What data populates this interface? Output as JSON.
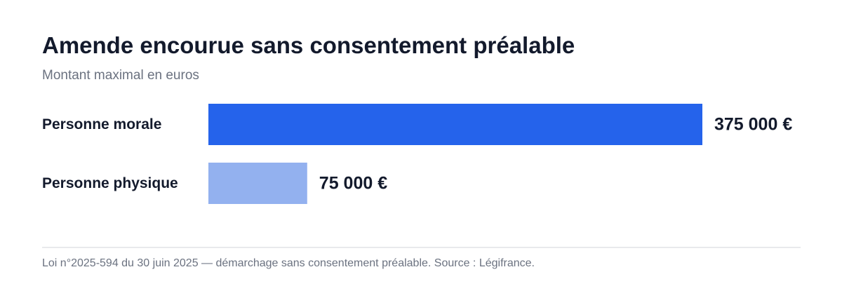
{
  "title": "Amende encourue sans consentement préalable",
  "subtitle": "Montant maximal en euros",
  "footnote": "Loi n°2025-594 du 30 juin 2025 — démarchage sans consentement préalable. Source : Légifrance.",
  "chart_data": {
    "type": "bar",
    "orientation": "horizontal",
    "categories": [
      "Personne morale",
      "Personne physique"
    ],
    "values": [
      375000,
      75000
    ],
    "value_labels": [
      "375 000 €",
      "75 000 €"
    ],
    "colors": [
      "#2563eb",
      "#93b1ef"
    ],
    "title": "Amende encourue sans consentement préalable",
    "subtitle": "Montant maximal en euros",
    "xlim": [
      0,
      375000
    ],
    "grid": false,
    "legend": "none"
  }
}
